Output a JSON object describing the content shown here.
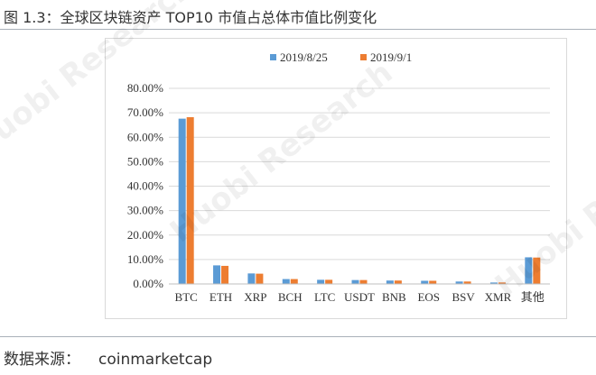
{
  "header": {
    "title": "图 1.3：全球区块链资产 TOP10 市值占总体市值比例变化"
  },
  "footer": {
    "source_label": "数据来源：",
    "source_value": "coinmarketcap"
  },
  "watermark": {
    "text": "Huobi Research"
  },
  "colors": {
    "series_1": "#5b9bd5",
    "series_2": "#ed7d31",
    "gridline": "#d9d9d9",
    "axis": "#bfbfbf"
  },
  "chart_data": {
    "type": "bar",
    "categories": [
      "BTC",
      "ETH",
      "XRP",
      "BCH",
      "LTC",
      "USDT",
      "BNB",
      "EOS",
      "BSV",
      "XMR",
      "其他"
    ],
    "series": [
      {
        "name": "2019/8/25",
        "values": [
          67.6,
          7.6,
          4.3,
          2.0,
          1.7,
          1.6,
          1.4,
          1.3,
          1.0,
          0.6,
          10.9
        ]
      },
      {
        "name": "2019/9/1",
        "values": [
          68.2,
          7.4,
          4.2,
          2.0,
          1.7,
          1.6,
          1.4,
          1.3,
          1.0,
          0.6,
          10.8
        ]
      }
    ],
    "y_ticks": [
      "0.00%",
      "10.00%",
      "20.00%",
      "30.00%",
      "40.00%",
      "50.00%",
      "60.00%",
      "70.00%",
      "80.00%"
    ],
    "ylim": [
      0,
      80
    ],
    "grid": true,
    "legend_position": "top-right"
  }
}
